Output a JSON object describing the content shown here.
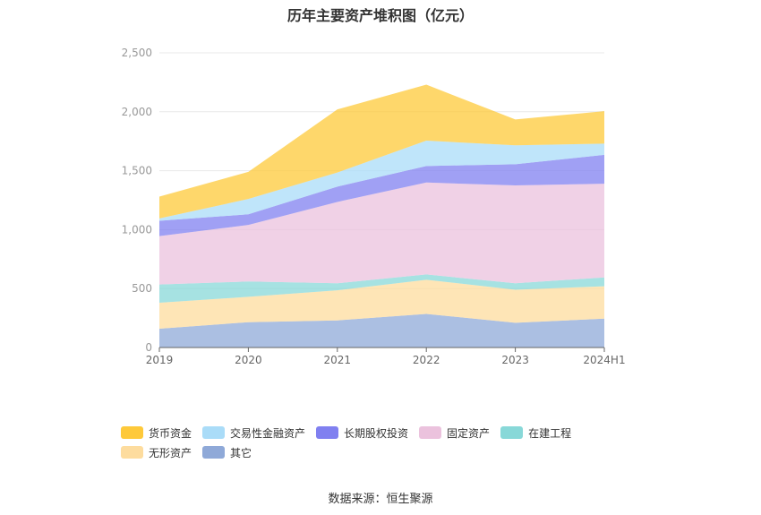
{
  "chart_data": {
    "type": "area",
    "stacked": true,
    "title": "历年主要资产堆积图（亿元）",
    "categories": [
      "2019",
      "2020",
      "2021",
      "2022",
      "2023",
      "2024H1"
    ],
    "ylim": [
      0,
      2500
    ],
    "yticks": [
      "0",
      "500",
      "1,000",
      "1,500",
      "2,000",
      "2,500"
    ],
    "grid": true,
    "legend_position": "bottom-left",
    "series": [
      {
        "name": "其它",
        "color": "#8fa9d8",
        "values": [
          160,
          215,
          230,
          285,
          210,
          245
        ]
      },
      {
        "name": "无形资产",
        "color": "#fddc9e",
        "values": [
          220,
          215,
          255,
          290,
          280,
          275
        ]
      },
      {
        "name": "在建工程",
        "color": "#88d8d8",
        "values": [
          155,
          130,
          60,
          45,
          55,
          75
        ]
      },
      {
        "name": "固定资产",
        "color": "#ebc2dd",
        "values": [
          410,
          480,
          690,
          780,
          830,
          795
        ]
      },
      {
        "name": "长期股权投资",
        "color": "#8080f0",
        "values": [
          130,
          90,
          130,
          140,
          180,
          245
        ]
      },
      {
        "name": "交易性金融资产",
        "color": "#aadcf8",
        "values": [
          20,
          130,
          120,
          215,
          160,
          95
        ]
      },
      {
        "name": "货币资金",
        "color": "#fec93a",
        "values": [
          185,
          230,
          535,
          475,
          220,
          275
        ]
      }
    ],
    "legend_order": [
      "货币资金",
      "交易性金融资产",
      "长期股权投资",
      "固定资产",
      "在建工程",
      "无形资产",
      "其它"
    ]
  },
  "source": "数据来源：恒生聚源"
}
